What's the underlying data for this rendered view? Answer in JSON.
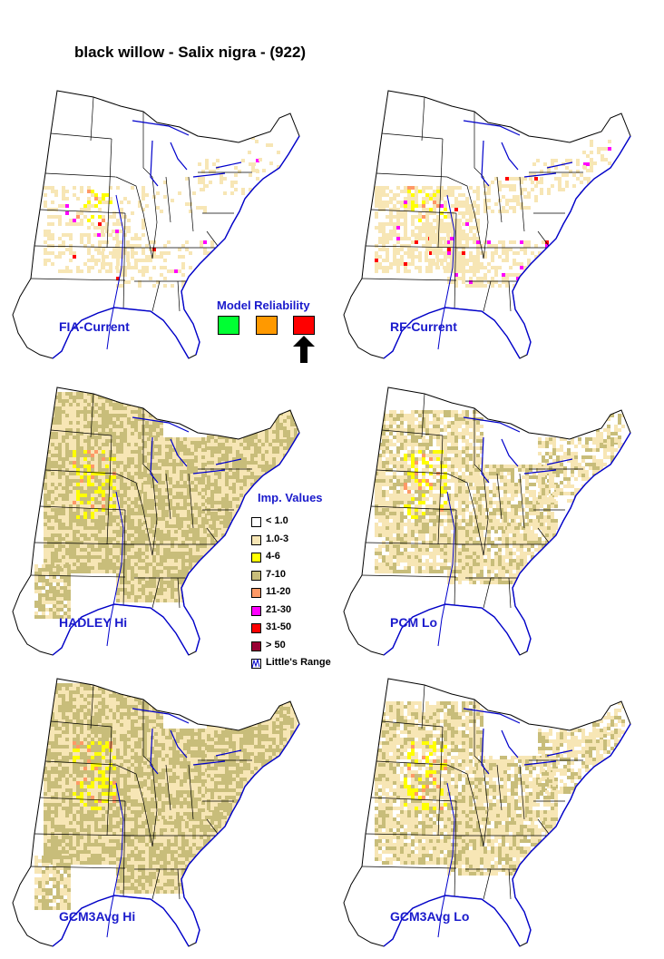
{
  "title": "black willow - Salix nigra - (922)",
  "panels": [
    {
      "label": "FIA-Current",
      "density": 0.35,
      "extent": "current"
    },
    {
      "label": "RF-Current",
      "density": 0.65,
      "extent": "current"
    },
    {
      "label": "HADLEY Hi",
      "density": 1.0,
      "extent": "wide"
    },
    {
      "label": "PCM Lo",
      "density": 0.8,
      "extent": "mid"
    },
    {
      "label": "GCM3Avg Hi",
      "density": 1.0,
      "extent": "wide"
    },
    {
      "label": "GCM3Avg Lo",
      "density": 0.85,
      "extent": "mid"
    }
  ],
  "model_reliability": {
    "title": "Model Reliability",
    "levels": [
      {
        "name": "high",
        "color": "#00ff33"
      },
      {
        "name": "medium",
        "color": "#ff9900"
      },
      {
        "name": "low",
        "color": "#ff0000",
        "selected": true
      }
    ]
  },
  "legend": {
    "title": "Imp. Values",
    "items": [
      {
        "label": "< 1.0",
        "color": "#ffffff"
      },
      {
        "label": "1.0-3",
        "color": "#f7e6b5"
      },
      {
        "label": "4-6",
        "color": "#ffff00"
      },
      {
        "label": "7-10",
        "color": "#c8bd7a"
      },
      {
        "label": "11-20",
        "color": "#ff9966"
      },
      {
        "label": "21-30",
        "color": "#ff00ff"
      },
      {
        "label": "31-50",
        "color": "#ff0000"
      },
      {
        "label": "> 50",
        "color": "#990033"
      }
    ],
    "range_label": "Little's Range",
    "range_icon": "range-line-icon"
  },
  "colors": {
    "label_blue": "#1a1acc",
    "water_blue": "#0000cc",
    "boundary": "#000000"
  }
}
